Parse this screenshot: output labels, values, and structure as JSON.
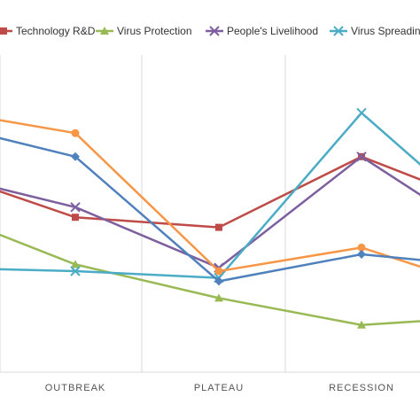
{
  "chart_data": {
    "type": "line",
    "title": "",
    "xlabel": "",
    "ylabel": "",
    "categories": [
      "",
      "OUTBREAK",
      "PLATEAU",
      "RECESSION",
      ""
    ],
    "ylim": [
      0,
      100
    ],
    "grid": {
      "vertical": true,
      "horizontal": false
    },
    "legend_placement": "top",
    "series": [
      {
        "name": "Technology R&D",
        "color": "#be4b48",
        "marker": "square",
        "values": [
          60,
          46,
          43,
          64,
          52
        ]
      },
      {
        "name": "Virus Protection",
        "color": "#98b954",
        "marker": "triangle",
        "values": [
          48,
          32,
          22,
          14,
          16
        ]
      },
      {
        "name": "People's Livelihood",
        "color": "#7d5fa0",
        "marker": "x",
        "values": [
          59,
          49,
          31,
          64,
          44
        ]
      },
      {
        "name": "Virus Spreading",
        "color": "#4bacc6",
        "marker": "x",
        "values": [
          31,
          30,
          28,
          77,
          50
        ]
      },
      {
        "name": "",
        "color": "#f79646",
        "marker": "circle",
        "values": [
          78,
          71,
          30,
          37,
          27
        ]
      },
      {
        "name": "",
        "color": "#4f81bd",
        "marker": "diamond",
        "values": [
          74,
          64,
          27,
          35,
          32
        ]
      }
    ]
  }
}
